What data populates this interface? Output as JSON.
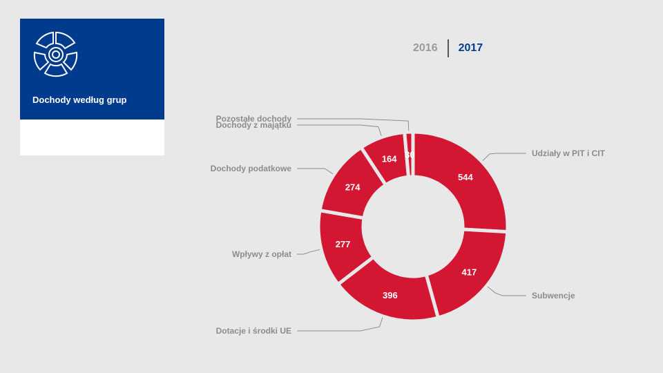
{
  "card": {
    "title": "Dochody według grup",
    "icon": "donut-segments-icon"
  },
  "years": [
    {
      "label": "2016",
      "active": false
    },
    {
      "label": "2017",
      "active": true
    }
  ],
  "colors": {
    "slice": "#d31733",
    "card_blue": "#003b8e",
    "callout": "#8c8c8c"
  },
  "chart_data": {
    "type": "pie",
    "donut": true,
    "title": "",
    "slices": [
      {
        "label": "Udziały w PIT i CIT",
        "value": 544
      },
      {
        "label": "Subwencje",
        "value": 417
      },
      {
        "label": "Dotacje i środki UE",
        "value": 396
      },
      {
        "label": "Wpływy z opłat",
        "value": 277
      },
      {
        "label": "Dochody podatkowe",
        "value": 274
      },
      {
        "label": "Dochody z majątku",
        "value": 164
      },
      {
        "label": "Pozostałe dochody",
        "value": 30
      }
    ]
  }
}
